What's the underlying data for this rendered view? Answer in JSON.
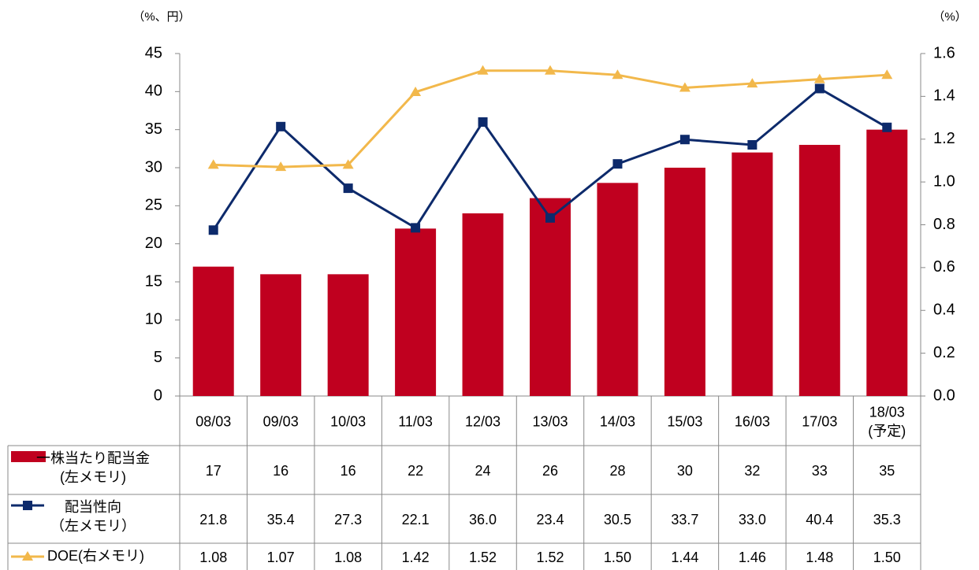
{
  "chart_data": {
    "type": "bar-line-table",
    "axis_label_left": "（%、円）",
    "axis_label_right": "（%）",
    "categories": [
      "08/03",
      "09/03",
      "10/03",
      "11/03",
      "12/03",
      "13/03",
      "14/03",
      "15/03",
      "16/03",
      "17/03",
      "18/03\n(予定)"
    ],
    "ylim": [
      0,
      45
    ],
    "yticks": [
      0,
      5,
      10,
      15,
      20,
      25,
      30,
      35,
      40,
      45
    ],
    "y2lim": [
      0,
      1.6
    ],
    "y2ticks": [
      {
        "value": 0,
        "label": "0.0"
      },
      0.2,
      0.4,
      0.6,
      0.8,
      {
        "value": 1,
        "label": "1.0"
      },
      1.2,
      1.4,
      1.6
    ],
    "series": [
      {
        "name": "一株当たり配当金\n(左メモリ)",
        "type": "bar",
        "color": "#c0001f",
        "values": [
          17,
          16,
          16,
          22,
          24,
          26,
          28,
          30,
          32,
          33,
          35
        ]
      },
      {
        "name": "配当性向\n（左メモリ）",
        "type": "line",
        "marker": "square",
        "color": "#0d2a6b",
        "values": [
          21.8,
          35.4,
          27.3,
          22.1,
          36.0,
          23.4,
          30.5,
          33.7,
          33.0,
          40.4,
          35.3
        ],
        "value_labels": [
          "21.8",
          "35.4",
          "27.3",
          "22.1",
          "36.0",
          "23.4",
          "30.5",
          "33.7",
          "33.0",
          "40.4",
          "35.3"
        ]
      },
      {
        "name": "DOE(右メモリ)",
        "type": "line",
        "marker": "triangle",
        "color": "#f2b84b",
        "axis": "y2",
        "values": [
          1.08,
          1.07,
          1.08,
          1.42,
          1.52,
          1.52,
          1.5,
          1.44,
          1.46,
          1.48,
          1.5
        ],
        "value_labels": [
          "1.08",
          "1.07",
          "1.08",
          "1.42",
          "1.52",
          "1.52",
          "1.50",
          "1.44",
          "1.46",
          "1.48",
          "1.50"
        ]
      }
    ]
  }
}
